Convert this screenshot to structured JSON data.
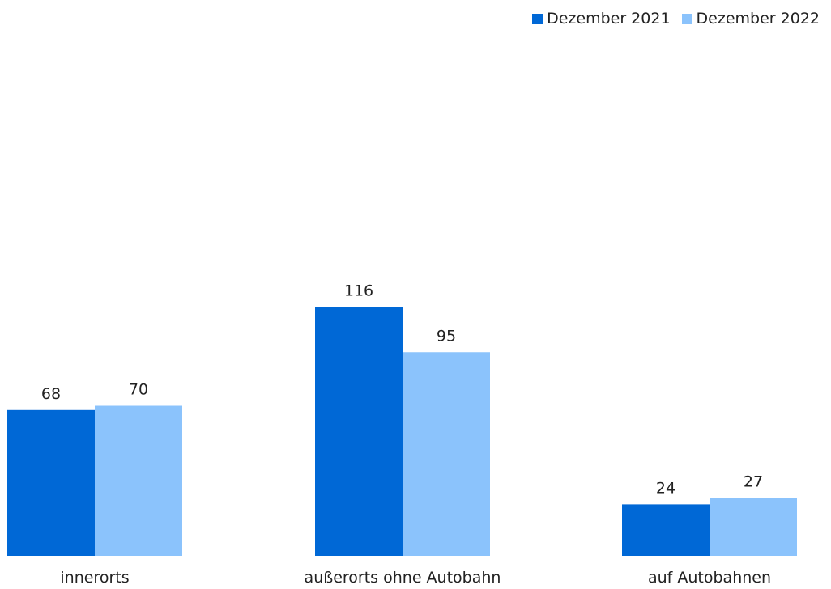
{
  "chart_data": {
    "type": "bar",
    "categories": [
      "innerorts",
      "außerorts ohne Autobahn",
      "auf Autobahnen"
    ],
    "series": [
      {
        "name": "Dezember 2021",
        "color": "#0068d6",
        "values": [
          68,
          116,
          24
        ]
      },
      {
        "name": "Dezember 2022",
        "color": "#8bc3fc",
        "values": [
          70,
          95,
          27
        ]
      }
    ],
    "ylim": [
      0,
      130
    ],
    "grid": false,
    "legend_position": "top-right"
  }
}
